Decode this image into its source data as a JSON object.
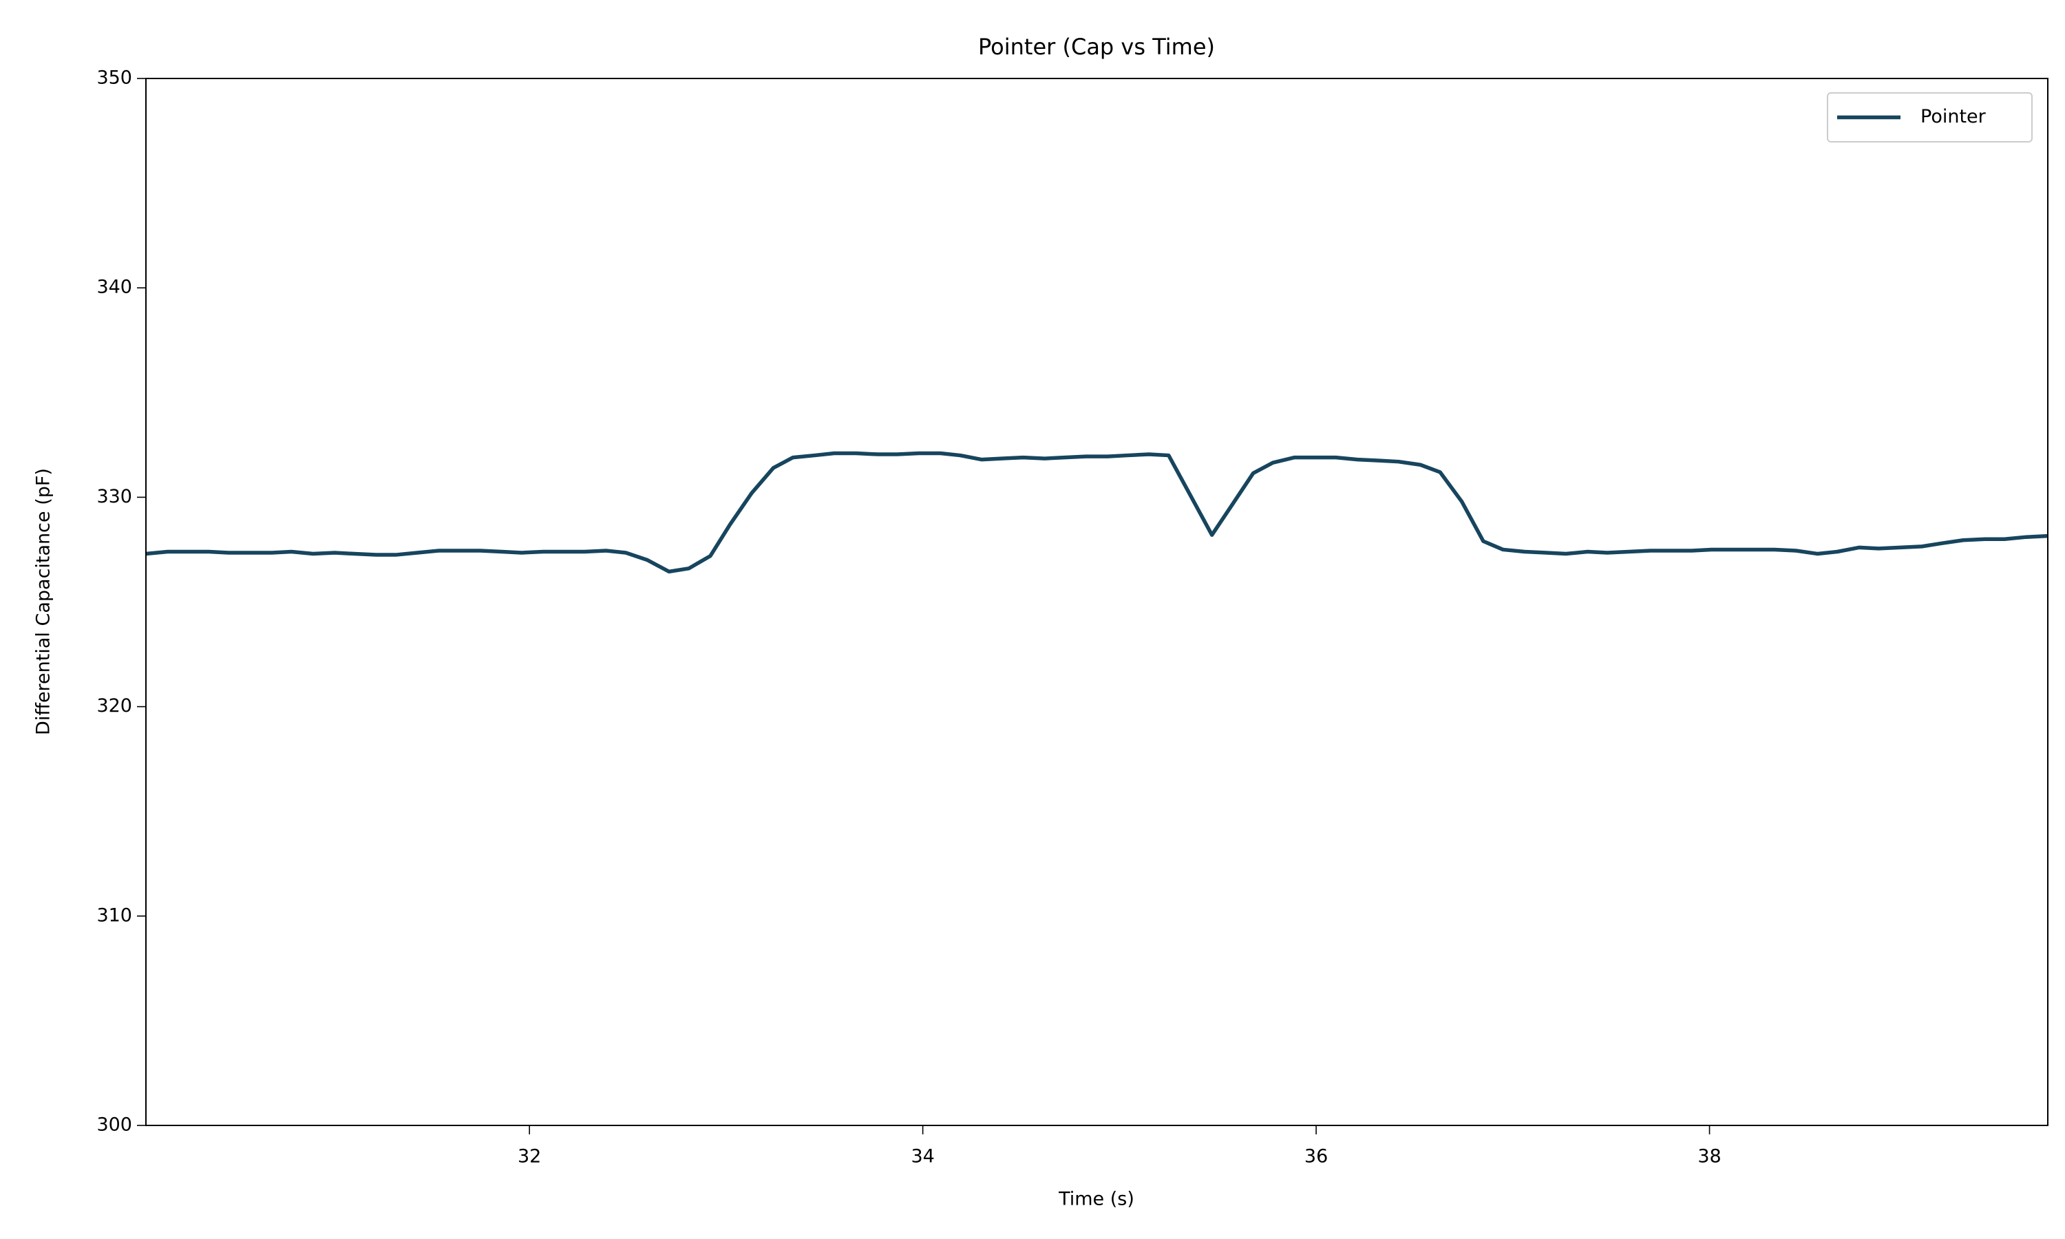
{
  "chart_data": {
    "type": "line",
    "title": "Pointer (Cap vs Time)",
    "x_label": "Time (s)",
    "y_label": "Differential Capacitance (pF)",
    "x": [
      30.05,
      30.16,
      30.26,
      30.37,
      30.47,
      30.58,
      30.69,
      30.79,
      30.9,
      31.01,
      31.11,
      31.22,
      31.32,
      31.43,
      31.54,
      31.64,
      31.75,
      31.86,
      31.96,
      32.07,
      32.17,
      32.28,
      32.39,
      32.49,
      32.6,
      32.71,
      32.81,
      32.92,
      33.02,
      33.13,
      33.24,
      33.34,
      33.45,
      33.55,
      33.66,
      33.77,
      33.87,
      33.98,
      34.09,
      34.19,
      34.3,
      34.4,
      34.51,
      34.62,
      34.72,
      34.83,
      34.94,
      35.04,
      35.15,
      35.25,
      35.36,
      35.47,
      35.57,
      35.68,
      35.78,
      35.89,
      36.0,
      36.1,
      36.21,
      36.32,
      36.42,
      36.53,
      36.63,
      36.74,
      36.85,
      36.95,
      37.06,
      37.17,
      37.27,
      37.38,
      37.48,
      37.59,
      37.7,
      37.8,
      37.91,
      38.01,
      38.12,
      38.23,
      38.33,
      38.44,
      38.55,
      38.65,
      38.76,
      38.86,
      38.97,
      39.08,
      39.18,
      39.29,
      39.4,
      39.5,
      39.61,
      39.72
    ],
    "series": [
      {
        "name": "Pointer",
        "color": "#17455e",
        "values": [
          327.3,
          327.4,
          327.4,
          327.4,
          327.35,
          327.35,
          327.35,
          327.4,
          327.3,
          327.35,
          327.3,
          327.25,
          327.25,
          327.35,
          327.45,
          327.45,
          327.45,
          327.4,
          327.35,
          327.4,
          327.4,
          327.4,
          327.45,
          327.35,
          327.0,
          326.45,
          326.6,
          327.2,
          328.7,
          330.2,
          331.4,
          331.9,
          332.0,
          332.1,
          332.1,
          332.05,
          332.05,
          332.1,
          332.1,
          332.0,
          331.8,
          331.85,
          331.9,
          331.85,
          331.9,
          331.95,
          331.95,
          332.0,
          332.05,
          332.0,
          330.1,
          328.2,
          329.6,
          331.15,
          331.65,
          331.9,
          331.9,
          331.9,
          331.8,
          331.75,
          331.7,
          331.55,
          331.2,
          329.8,
          327.9,
          327.5,
          327.4,
          327.35,
          327.3,
          327.4,
          327.35,
          327.4,
          327.45,
          327.45,
          327.45,
          327.5,
          327.5,
          327.5,
          327.5,
          327.45,
          327.3,
          327.4,
          327.6,
          327.55,
          327.6,
          327.65,
          327.8,
          327.95,
          328.0,
          328.0,
          328.1,
          328.15
        ]
      }
    ],
    "xlim": [
      30.05,
      39.72
    ],
    "xticks": [
      32,
      34,
      36,
      38
    ],
    "ylim": [
      300,
      350
    ],
    "yticks": [
      300,
      310,
      320,
      330,
      340,
      350
    ],
    "grid": false,
    "legend": "upper right"
  }
}
